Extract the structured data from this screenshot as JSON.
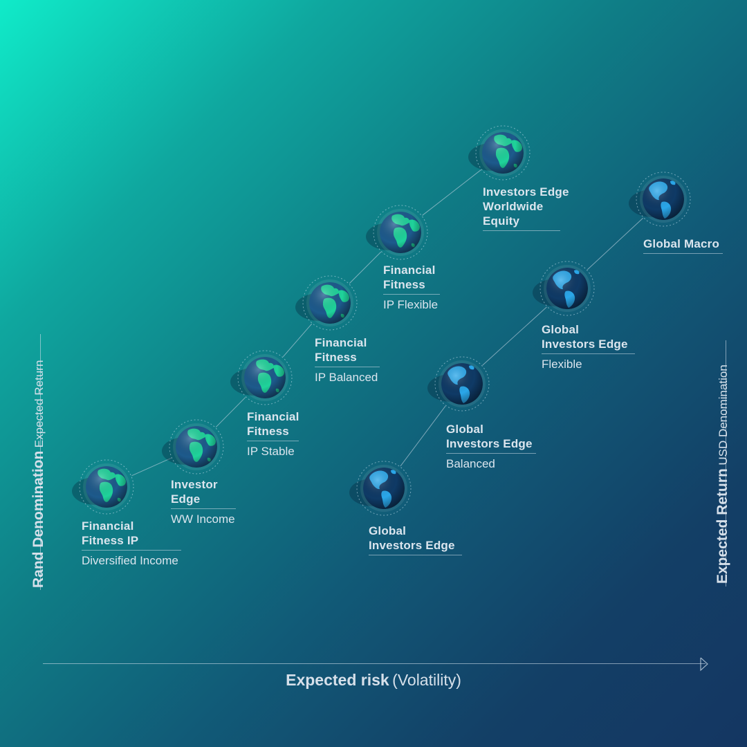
{
  "x_axis": {
    "label_bold": "Expected risk",
    "label_regular": "(Volatility)"
  },
  "left_axis": {
    "label_bold": "Rand Denomination",
    "label_regular": "Expected Return"
  },
  "right_axis": {
    "label_bold": "Expected Return",
    "label_regular": "USD Denomination"
  },
  "colors": {
    "rand_globe": "#1fd39b",
    "usd_globe": "#2aa7ea",
    "connector": "#c6d6e2",
    "text": "#dbe5ee"
  },
  "rand_series": [
    {
      "title": [
        "Financial",
        "Fitness IP"
      ],
      "sub": "Diversified Income",
      "icon": "globe-europe-africa-icon"
    },
    {
      "title": [
        "Investor",
        "Edge"
      ],
      "sub": "WW Income",
      "icon": "globe-europe-africa-icon"
    },
    {
      "title": [
        "Financial",
        "Fitness"
      ],
      "sub": "IP Stable",
      "icon": "globe-europe-africa-icon"
    },
    {
      "title": [
        "Financial",
        "Fitness"
      ],
      "sub": "IP Balanced",
      "icon": "globe-europe-africa-icon"
    },
    {
      "title": [
        "Financial",
        "Fitness"
      ],
      "sub": "IP Flexible",
      "icon": "globe-europe-africa-icon"
    },
    {
      "title": [
        "Investors Edge",
        "Worldwide",
        "Equity"
      ],
      "sub": "",
      "icon": "globe-europe-africa-icon"
    }
  ],
  "usd_series": [
    {
      "title": [
        "Global",
        "Investors Edge"
      ],
      "sub": "",
      "icon": "globe-americas-icon"
    },
    {
      "title": [
        "Global",
        "Investors Edge"
      ],
      "sub": "Balanced",
      "icon": "globe-americas-icon"
    },
    {
      "title": [
        "Global",
        "Investors Edge"
      ],
      "sub": "Flexible",
      "icon": "globe-americas-icon"
    },
    {
      "title": [
        "Global Macro"
      ],
      "sub": "",
      "icon": "globe-americas-icon"
    }
  ]
}
